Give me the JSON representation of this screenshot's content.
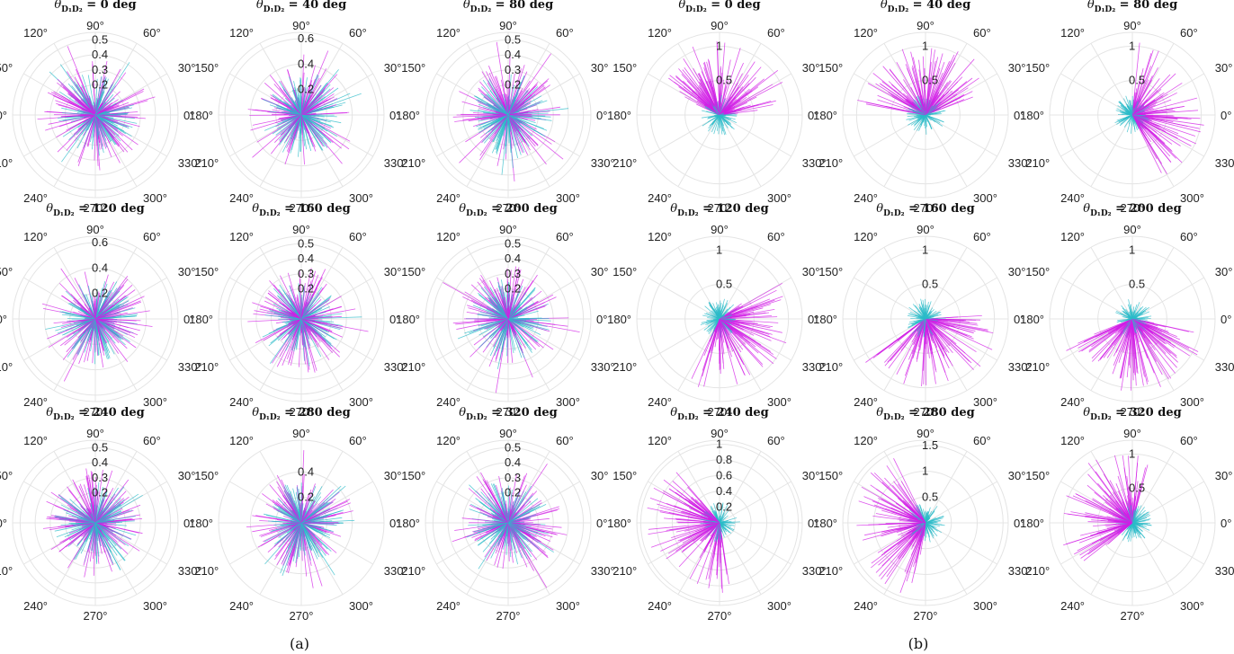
{
  "figure": {
    "caption_a": "(a)",
    "caption_b": "(b)",
    "title_symbol": "θ",
    "title_subscript": "D₁D₂",
    "title_equals": " = ",
    "title_unit": " deg"
  },
  "chart_data": {
    "type": "polar",
    "angle_ticks": [
      "0°",
      "30°",
      "60°",
      "90°",
      "120°",
      "150°",
      "180°",
      "210°",
      "240°",
      "270°",
      "300°",
      "330°"
    ],
    "angle_tick_values": [
      0,
      30,
      60,
      90,
      120,
      150,
      180,
      210,
      240,
      270,
      300,
      330
    ],
    "series_colors": {
      "cyan": "#2bbbc8",
      "magenta": "#d21ee6"
    },
    "grid_color": "#e4e4e4",
    "panel_a": {
      "group": "(a)",
      "plots": [
        {
          "angle_deg": 0,
          "title_value": "0",
          "rmax": 0.55,
          "rticks": [
            0.2,
            0.3,
            0.4,
            0.5
          ],
          "rtick_labels": [
            "0.2",
            "0.3",
            "0.4",
            "0.5"
          ],
          "dominant_direction_deg": null
        },
        {
          "angle_deg": 40,
          "title_value": "40",
          "rmax": 0.65,
          "rticks": [
            0.2,
            0.4,
            0.6
          ],
          "rtick_labels": [
            "0.2",
            "0.4",
            "0.6"
          ],
          "dominant_direction_deg": null
        },
        {
          "angle_deg": 80,
          "title_value": "80",
          "rmax": 0.55,
          "rticks": [
            0.2,
            0.3,
            0.4,
            0.5
          ],
          "rtick_labels": [
            "0.2",
            "0.3",
            "0.4",
            "0.5"
          ],
          "dominant_direction_deg": null
        },
        {
          "angle_deg": 120,
          "title_value": "120",
          "rmax": 0.65,
          "rticks": [
            0.2,
            0.4,
            0.6
          ],
          "rtick_labels": [
            "0.2",
            "0.4",
            "0.6"
          ],
          "dominant_direction_deg": null
        },
        {
          "angle_deg": 160,
          "title_value": "160",
          "rmax": 0.55,
          "rticks": [
            0.2,
            0.3,
            0.4,
            0.5
          ],
          "rtick_labels": [
            "0.2",
            "0.3",
            "0.4",
            "0.5"
          ],
          "dominant_direction_deg": null
        },
        {
          "angle_deg": 200,
          "title_value": "200",
          "rmax": 0.55,
          "rticks": [
            0.2,
            0.3,
            0.4,
            0.5
          ],
          "rtick_labels": [
            "0.2",
            "0.3",
            "0.4",
            "0.5"
          ],
          "dominant_direction_deg": null
        },
        {
          "angle_deg": 240,
          "title_value": "240",
          "rmax": 0.55,
          "rticks": [
            0.2,
            0.3,
            0.4,
            0.5
          ],
          "rtick_labels": [
            "0.2",
            "0.3",
            "0.4",
            "0.5"
          ],
          "dominant_direction_deg": null
        },
        {
          "angle_deg": 280,
          "title_value": "280",
          "rmax": 0.65,
          "rticks": [
            0.2,
            0.4
          ],
          "rtick_labels": [
            "0.2",
            "0.4"
          ],
          "dominant_direction_deg": null
        },
        {
          "angle_deg": 320,
          "title_value": "320",
          "rmax": 0.55,
          "rticks": [
            0.2,
            0.3,
            0.4,
            0.5
          ],
          "rtick_labels": [
            "0.2",
            "0.3",
            "0.4",
            "0.5"
          ],
          "dominant_direction_deg": null
        }
      ]
    },
    "panel_b": {
      "group": "(b)",
      "plots": [
        {
          "angle_deg": 0,
          "title_value": "0",
          "rmax": 1.2,
          "rticks": [
            0.5,
            1
          ],
          "rtick_labels": [
            "0.5",
            "1"
          ],
          "dominant_direction_deg": 80
        },
        {
          "angle_deg": 40,
          "title_value": "40",
          "rmax": 1.2,
          "rticks": [
            0.5,
            1
          ],
          "rtick_labels": [
            "0.5",
            "1"
          ],
          "dominant_direction_deg": 95
        },
        {
          "angle_deg": 80,
          "title_value": "80",
          "rmax": 1.2,
          "rticks": [
            0.5,
            1
          ],
          "rtick_labels": [
            "0.5",
            "1"
          ],
          "dominant_direction_deg": 10
        },
        {
          "angle_deg": 120,
          "title_value": "120",
          "rmax": 1.2,
          "rticks": [
            0.5,
            1
          ],
          "rtick_labels": [
            "0.5",
            "1"
          ],
          "dominant_direction_deg": 320
        },
        {
          "angle_deg": 160,
          "title_value": "160",
          "rmax": 1.2,
          "rticks": [
            0.5,
            1
          ],
          "rtick_labels": [
            "0.5",
            "1"
          ],
          "dominant_direction_deg": 290
        },
        {
          "angle_deg": 200,
          "title_value": "200",
          "rmax": 1.2,
          "rticks": [
            0.5,
            1
          ],
          "rtick_labels": [
            "0.5",
            "1"
          ],
          "dominant_direction_deg": 275
        },
        {
          "angle_deg": 240,
          "title_value": "240",
          "rmax": 1.05,
          "rticks": [
            0.2,
            0.4,
            0.6,
            0.8,
            1
          ],
          "rtick_labels": [
            "0.2",
            "0.4",
            "0.6",
            "0.8",
            "1"
          ],
          "dominant_direction_deg": 205
        },
        {
          "angle_deg": 280,
          "title_value": "280",
          "rmax": 1.6,
          "rticks": [
            0.5,
            1,
            1.5
          ],
          "rtick_labels": [
            "0.5",
            "1",
            "1.5"
          ],
          "dominant_direction_deg": 190
        },
        {
          "angle_deg": 320,
          "title_value": "320",
          "rmax": 1.2,
          "rticks": [
            0.5,
            1
          ],
          "rtick_labels": [
            "0.5",
            "1"
          ],
          "dominant_direction_deg": 150
        }
      ]
    }
  }
}
